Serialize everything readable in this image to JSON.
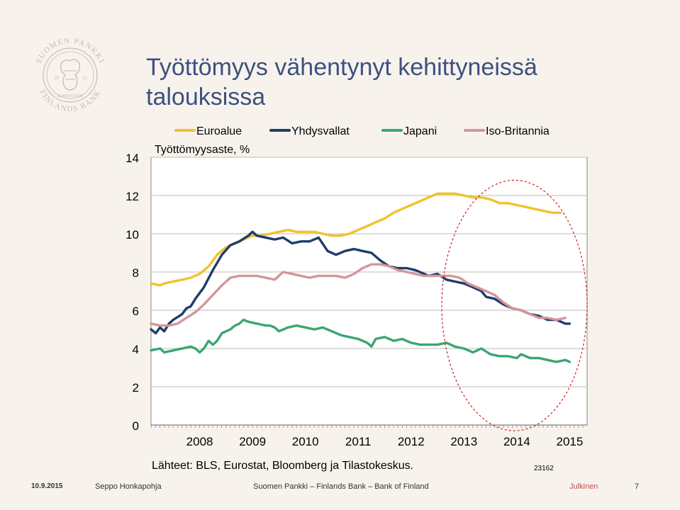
{
  "slide": {
    "title": "Työttömyys vähentynyt kehittyneissä talouksissa",
    "logo": {
      "text_top": "SUOMEN PANKKI",
      "text_bottom": "FINLANDS BANK",
      "text_inner": "EUROSYSTEM",
      "year_left": "18",
      "year_right": "11",
      "color": "#c9b8b4"
    }
  },
  "chart_data": {
    "type": "line",
    "title": "",
    "ylabel": "Työttömyysaste, %",
    "xlabel": "",
    "ylim": [
      0,
      14
    ],
    "yticks": [
      0,
      2,
      4,
      6,
      8,
      10,
      12,
      14
    ],
    "xlim": [
      2007.58,
      2015.83
    ],
    "x_tick_labels": [
      "2008",
      "2009",
      "2010",
      "2011",
      "2012",
      "2013",
      "2014",
      "2015"
    ],
    "grid": true,
    "legend_position": "top",
    "source": "Lähteet: BLS, Eurostat, Bloomberg ja Tilastokeskus.",
    "chart_id": "23162",
    "series": [
      {
        "name": "Euroalue",
        "color": "#f2c12e",
        "points": [
          [
            2007.58,
            7.4
          ],
          [
            2007.75,
            7.3
          ],
          [
            2007.83,
            7.4
          ],
          [
            2008.0,
            7.5
          ],
          [
            2008.17,
            7.6
          ],
          [
            2008.33,
            7.7
          ],
          [
            2008.5,
            7.9
          ],
          [
            2008.67,
            8.3
          ],
          [
            2008.83,
            8.9
          ],
          [
            2009.0,
            9.3
          ],
          [
            2009.17,
            9.5
          ],
          [
            2009.33,
            9.7
          ],
          [
            2009.5,
            9.9
          ],
          [
            2009.67,
            9.9
          ],
          [
            2009.83,
            10.0
          ],
          [
            2010.0,
            10.1
          ],
          [
            2010.17,
            10.2
          ],
          [
            2010.33,
            10.1
          ],
          [
            2010.5,
            10.1
          ],
          [
            2010.67,
            10.1
          ],
          [
            2010.83,
            10.0
          ],
          [
            2011.0,
            9.9
          ],
          [
            2011.17,
            9.9
          ],
          [
            2011.33,
            10.0
          ],
          [
            2011.5,
            10.2
          ],
          [
            2011.67,
            10.4
          ],
          [
            2011.83,
            10.6
          ],
          [
            2012.0,
            10.8
          ],
          [
            2012.17,
            11.1
          ],
          [
            2012.33,
            11.3
          ],
          [
            2012.5,
            11.5
          ],
          [
            2012.67,
            11.7
          ],
          [
            2012.83,
            11.9
          ],
          [
            2013.0,
            12.1
          ],
          [
            2013.17,
            12.1
          ],
          [
            2013.33,
            12.1
          ],
          [
            2013.5,
            12.0
          ],
          [
            2013.67,
            11.9
          ],
          [
            2013.83,
            11.9
          ],
          [
            2014.0,
            11.8
          ],
          [
            2014.17,
            11.6
          ],
          [
            2014.33,
            11.6
          ],
          [
            2014.5,
            11.5
          ],
          [
            2014.67,
            11.4
          ],
          [
            2014.83,
            11.3
          ],
          [
            2015.0,
            11.2
          ],
          [
            2015.17,
            11.1
          ],
          [
            2015.33,
            11.1
          ]
        ]
      },
      {
        "name": "Yhdysvallat",
        "color": "#1f3c6b",
        "points": [
          [
            2007.58,
            5.0
          ],
          [
            2007.67,
            4.8
          ],
          [
            2007.75,
            5.1
          ],
          [
            2007.83,
            4.9
          ],
          [
            2007.92,
            5.3
          ],
          [
            2008.0,
            5.5
          ],
          [
            2008.17,
            5.8
          ],
          [
            2008.25,
            6.1
          ],
          [
            2008.33,
            6.2
          ],
          [
            2008.42,
            6.6
          ],
          [
            2008.58,
            7.2
          ],
          [
            2008.75,
            8.1
          ],
          [
            2008.92,
            8.9
          ],
          [
            2009.08,
            9.4
          ],
          [
            2009.25,
            9.6
          ],
          [
            2009.42,
            9.9
          ],
          [
            2009.5,
            10.1
          ],
          [
            2009.58,
            9.9
          ],
          [
            2009.75,
            9.8
          ],
          [
            2009.92,
            9.7
          ],
          [
            2010.08,
            9.8
          ],
          [
            2010.25,
            9.5
          ],
          [
            2010.42,
            9.6
          ],
          [
            2010.58,
            9.6
          ],
          [
            2010.75,
            9.8
          ],
          [
            2010.92,
            9.1
          ],
          [
            2011.08,
            8.9
          ],
          [
            2011.25,
            9.1
          ],
          [
            2011.42,
            9.2
          ],
          [
            2011.58,
            9.1
          ],
          [
            2011.75,
            9.0
          ],
          [
            2011.92,
            8.6
          ],
          [
            2012.08,
            8.3
          ],
          [
            2012.25,
            8.2
          ],
          [
            2012.42,
            8.2
          ],
          [
            2012.58,
            8.1
          ],
          [
            2012.75,
            7.9
          ],
          [
            2012.83,
            7.8
          ],
          [
            2013.0,
            7.9
          ],
          [
            2013.17,
            7.6
          ],
          [
            2013.33,
            7.5
          ],
          [
            2013.5,
            7.4
          ],
          [
            2013.67,
            7.2
          ],
          [
            2013.83,
            7.0
          ],
          [
            2013.92,
            6.7
          ],
          [
            2014.08,
            6.6
          ],
          [
            2014.25,
            6.3
          ],
          [
            2014.42,
            6.1
          ],
          [
            2014.58,
            6.0
          ],
          [
            2014.75,
            5.8
          ],
          [
            2014.92,
            5.7
          ],
          [
            2015.08,
            5.5
          ],
          [
            2015.25,
            5.5
          ],
          [
            2015.42,
            5.3
          ],
          [
            2015.5,
            5.3
          ]
        ]
      },
      {
        "name": "Japani",
        "color": "#3aa672",
        "points": [
          [
            2007.58,
            3.9
          ],
          [
            2007.75,
            4.0
          ],
          [
            2007.83,
            3.8
          ],
          [
            2008.0,
            3.9
          ],
          [
            2008.17,
            4.0
          ],
          [
            2008.33,
            4.1
          ],
          [
            2008.42,
            4.0
          ],
          [
            2008.5,
            3.8
          ],
          [
            2008.58,
            4.0
          ],
          [
            2008.67,
            4.4
          ],
          [
            2008.75,
            4.2
          ],
          [
            2008.83,
            4.4
          ],
          [
            2008.92,
            4.8
          ],
          [
            2009.08,
            5.0
          ],
          [
            2009.17,
            5.2
          ],
          [
            2009.25,
            5.3
          ],
          [
            2009.33,
            5.5
          ],
          [
            2009.42,
            5.4
          ],
          [
            2009.58,
            5.3
          ],
          [
            2009.75,
            5.2
          ],
          [
            2009.83,
            5.2
          ],
          [
            2009.92,
            5.1
          ],
          [
            2010.0,
            4.9
          ],
          [
            2010.17,
            5.1
          ],
          [
            2010.33,
            5.2
          ],
          [
            2010.5,
            5.1
          ],
          [
            2010.67,
            5.0
          ],
          [
            2010.83,
            5.1
          ],
          [
            2011.0,
            4.9
          ],
          [
            2011.17,
            4.7
          ],
          [
            2011.33,
            4.6
          ],
          [
            2011.5,
            4.5
          ],
          [
            2011.67,
            4.3
          ],
          [
            2011.75,
            4.1
          ],
          [
            2011.83,
            4.5
          ],
          [
            2012.0,
            4.6
          ],
          [
            2012.17,
            4.4
          ],
          [
            2012.33,
            4.5
          ],
          [
            2012.5,
            4.3
          ],
          [
            2012.67,
            4.2
          ],
          [
            2012.83,
            4.2
          ],
          [
            2013.0,
            4.2
          ],
          [
            2013.17,
            4.3
          ],
          [
            2013.33,
            4.1
          ],
          [
            2013.5,
            4.0
          ],
          [
            2013.67,
            3.8
          ],
          [
            2013.83,
            4.0
          ],
          [
            2014.0,
            3.7
          ],
          [
            2014.17,
            3.6
          ],
          [
            2014.33,
            3.6
          ],
          [
            2014.5,
            3.5
          ],
          [
            2014.58,
            3.7
          ],
          [
            2014.75,
            3.5
          ],
          [
            2014.92,
            3.5
          ],
          [
            2015.08,
            3.4
          ],
          [
            2015.25,
            3.3
          ],
          [
            2015.42,
            3.4
          ],
          [
            2015.5,
            3.3
          ]
        ]
      },
      {
        "name": "Iso-Britannia",
        "color": "#d4969a",
        "points": [
          [
            2007.58,
            5.3
          ],
          [
            2007.75,
            5.2
          ],
          [
            2007.92,
            5.2
          ],
          [
            2008.08,
            5.3
          ],
          [
            2008.25,
            5.6
          ],
          [
            2008.42,
            5.9
          ],
          [
            2008.58,
            6.3
          ],
          [
            2008.75,
            6.8
          ],
          [
            2008.92,
            7.3
          ],
          [
            2009.08,
            7.7
          ],
          [
            2009.25,
            7.8
          ],
          [
            2009.42,
            7.8
          ],
          [
            2009.58,
            7.8
          ],
          [
            2009.75,
            7.7
          ],
          [
            2009.92,
            7.6
          ],
          [
            2010.08,
            8.0
          ],
          [
            2010.25,
            7.9
          ],
          [
            2010.42,
            7.8
          ],
          [
            2010.58,
            7.7
          ],
          [
            2010.75,
            7.8
          ],
          [
            2010.92,
            7.8
          ],
          [
            2011.08,
            7.8
          ],
          [
            2011.25,
            7.7
          ],
          [
            2011.42,
            7.9
          ],
          [
            2011.58,
            8.2
          ],
          [
            2011.75,
            8.4
          ],
          [
            2011.92,
            8.4
          ],
          [
            2012.08,
            8.3
          ],
          [
            2012.25,
            8.1
          ],
          [
            2012.42,
            8.0
          ],
          [
            2012.58,
            7.9
          ],
          [
            2012.75,
            7.8
          ],
          [
            2012.92,
            7.8
          ],
          [
            2013.08,
            7.8
          ],
          [
            2013.25,
            7.8
          ],
          [
            2013.42,
            7.7
          ],
          [
            2013.58,
            7.4
          ],
          [
            2013.75,
            7.2
          ],
          [
            2013.92,
            7.0
          ],
          [
            2014.08,
            6.8
          ],
          [
            2014.25,
            6.4
          ],
          [
            2014.42,
            6.1
          ],
          [
            2014.58,
            6.0
          ],
          [
            2014.75,
            5.8
          ],
          [
            2014.92,
            5.6
          ],
          [
            2015.08,
            5.6
          ],
          [
            2015.25,
            5.5
          ],
          [
            2015.42,
            5.6
          ]
        ]
      }
    ],
    "annotation": {
      "shape": "dashed-ellipse",
      "color": "#cc1f1f",
      "x_range": [
        2013.08,
        2015.83
      ],
      "y_range": [
        -0.3,
        12.8
      ]
    }
  },
  "footer": {
    "date": "10.9.2015",
    "author": "Seppo Honkapohja",
    "org": "Suomen Pankki – Finlands Bank – Bank of Finland",
    "classification": "Julkinen",
    "page": "7"
  }
}
